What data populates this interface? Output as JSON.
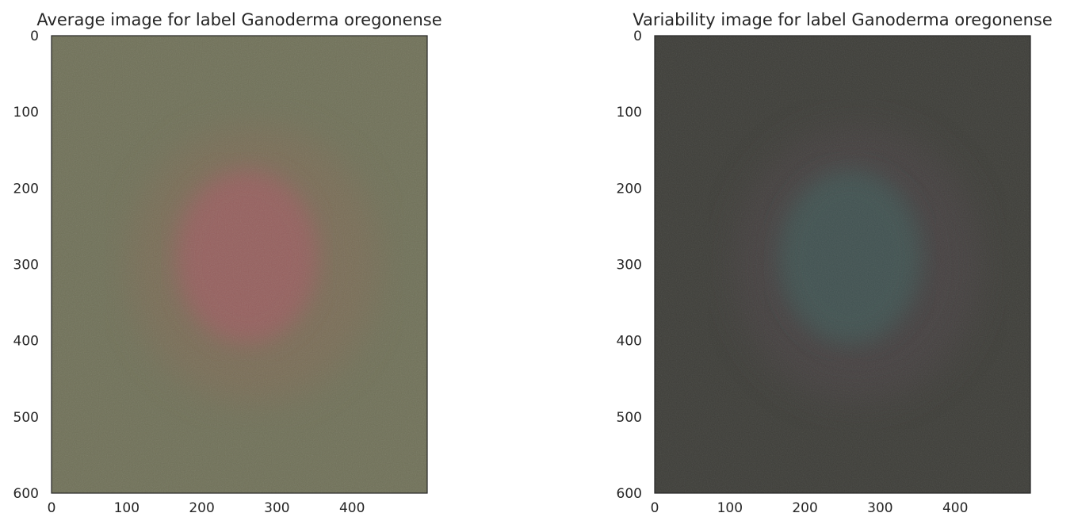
{
  "chart_data": [
    {
      "type": "image",
      "title": "Average image for label Ganoderma oregonense",
      "xlim": [
        0,
        500
      ],
      "ylim": [
        600,
        0
      ],
      "xticks": [
        0,
        100,
        200,
        300,
        400
      ],
      "yticks": [
        0,
        100,
        200,
        300,
        400,
        500,
        600
      ],
      "colors": {
        "background": "#6f7057",
        "center": "#9a5d5f",
        "ring": "#7f6b55"
      }
    },
    {
      "type": "image",
      "title": "Variability image for label Ganoderma oregonense",
      "xlim": [
        0,
        500
      ],
      "ylim": [
        600,
        0
      ],
      "xticks": [
        0,
        100,
        200,
        300,
        400
      ],
      "yticks": [
        0,
        100,
        200,
        300,
        400,
        500,
        600
      ],
      "colors": {
        "background": "#3d3d38",
        "center": "#3f5553",
        "ring": "#4a4245"
      }
    }
  ]
}
